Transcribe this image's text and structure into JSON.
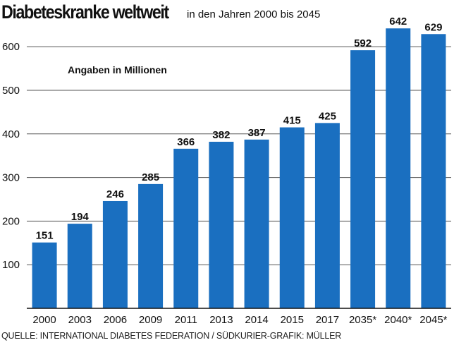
{
  "header": {
    "title": "Diabeteskranke weltweit",
    "subtitle": "in den Jahren 2000 bis 2045"
  },
  "note": "Angaben in Millionen",
  "source": "QUELLE: INTERNATIONAL DIABETES FEDERATION / SÜDKURIER-GRAFIK: MÜLLER",
  "colors": {
    "bar": "#1a6fc0",
    "grid": "#555555",
    "axis": "#111111"
  },
  "chart_data": {
    "type": "bar",
    "title": "Diabeteskranke weltweit",
    "subtitle": "in den Jahren 2000 bis 2045",
    "categories": [
      "2000",
      "2003",
      "2006",
      "2009",
      "2011",
      "2013",
      "2014",
      "2015",
      "2017",
      "2035*",
      "2040*",
      "2045*"
    ],
    "values": [
      151,
      194,
      246,
      285,
      366,
      382,
      387,
      415,
      425,
      592,
      642,
      629
    ],
    "value_labels": [
      "151",
      "194",
      "246",
      "285",
      "366",
      "382",
      "387",
      "415",
      "425",
      "592",
      "642",
      "629"
    ],
    "yticks": [
      100,
      200,
      300,
      400,
      500,
      600
    ],
    "ytick_labels": [
      "100",
      "200",
      "300",
      "400",
      "500",
      "600"
    ],
    "ylim": [
      0,
      650
    ],
    "xlabel": "",
    "ylabel": "",
    "grid": true,
    "legend": "none"
  }
}
